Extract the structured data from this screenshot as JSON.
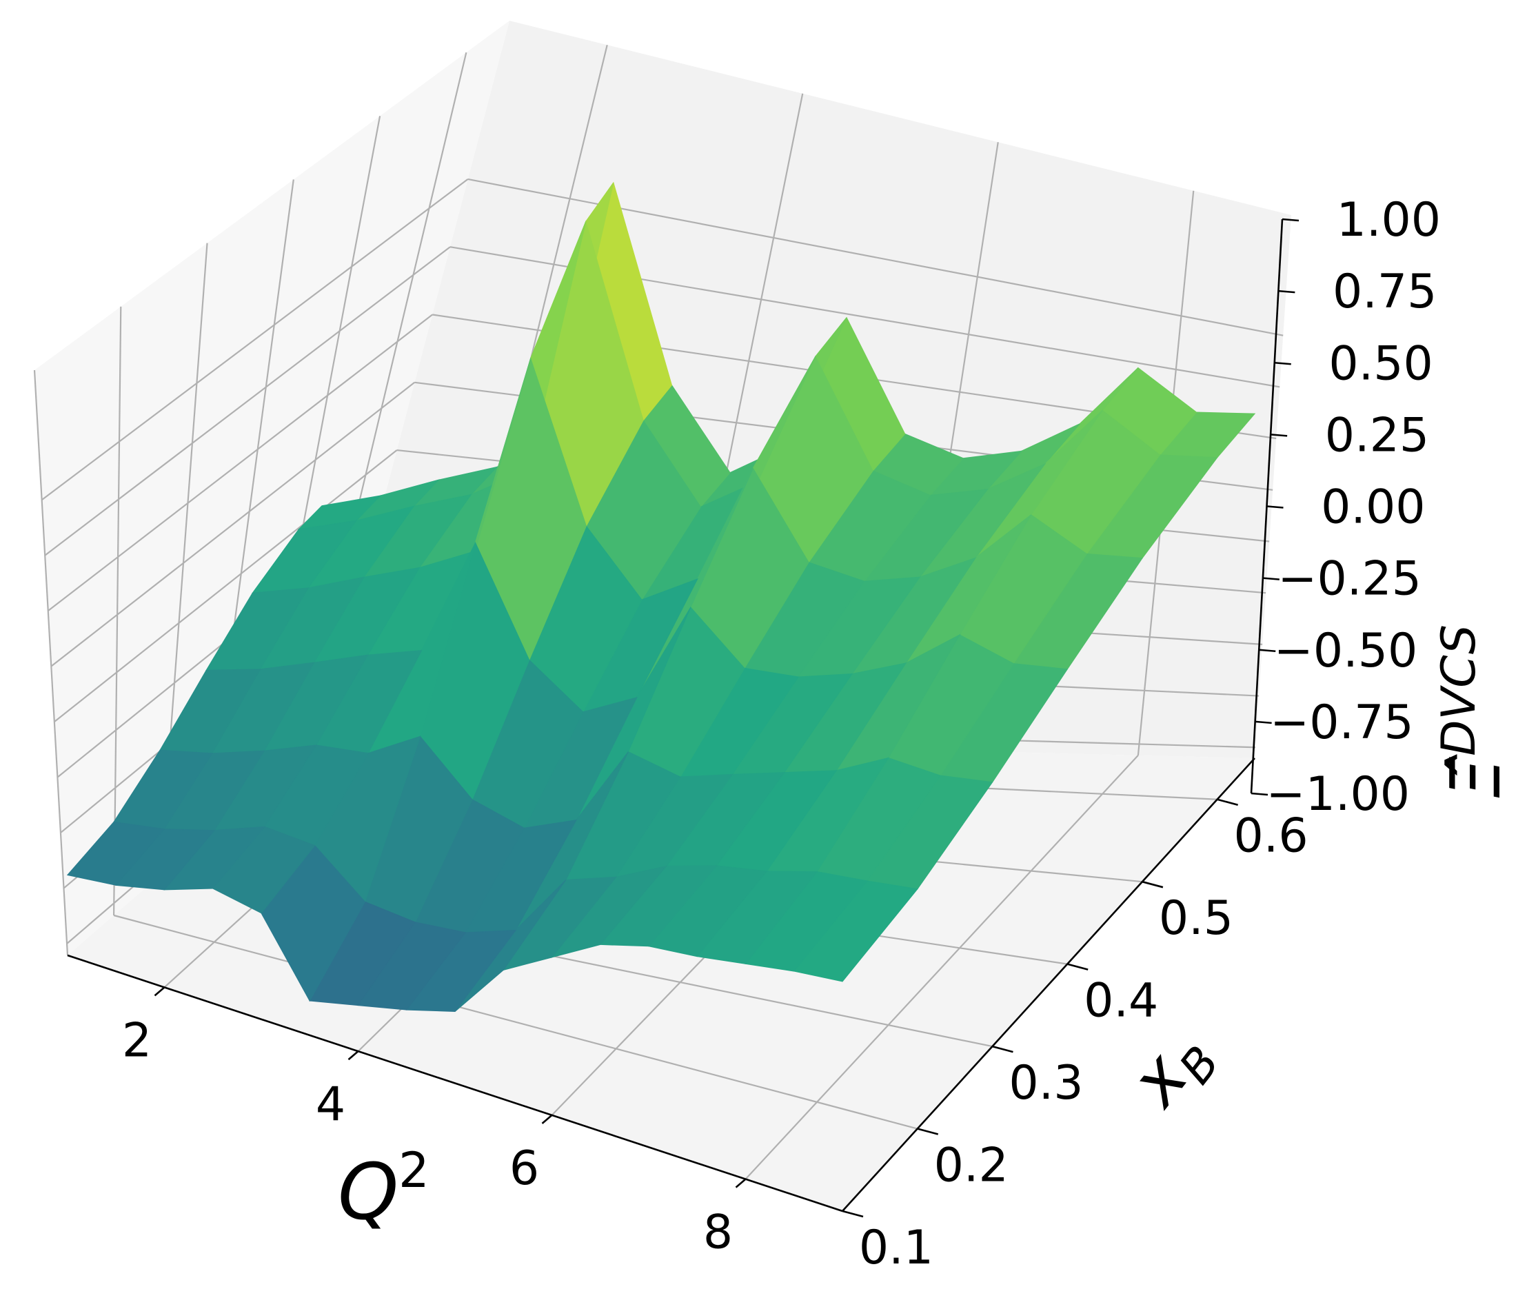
{
  "chart_data": {
    "type": "surface",
    "title": "",
    "colormap": "viridis",
    "xlabel": "Q",
    "xlabel_sup": "2",
    "ylabel": "x",
    "ylabel_sub": "B",
    "zlabel_symbol": "Ξ̂",
    "zlabel_sub": "DVCS",
    "x_ticks": [
      "2",
      "4",
      "6",
      "8"
    ],
    "y_ticks": [
      "0.1",
      "0.2",
      "0.3",
      "0.4",
      "0.5",
      "0.6"
    ],
    "z_ticks": [
      "−1.00",
      "−0.75",
      "−0.50",
      "−0.25",
      "0.00",
      "0.25",
      "0.50",
      "0.75",
      "1.00"
    ],
    "xlim": [
      1,
      9
    ],
    "ylim": [
      0.1,
      0.65
    ],
    "zlim": [
      -1.0,
      1.0
    ],
    "grid": true,
    "surface_profile": {
      "q2": [
        1.0,
        1.5,
        2.0,
        2.5,
        3.0,
        3.5,
        4.0,
        4.5,
        5.0,
        5.5,
        6.0,
        6.5,
        7.0,
        7.5,
        8.0,
        8.5,
        9.0
      ],
      "xb": [
        0.1,
        0.2,
        0.3,
        0.4,
        0.5,
        0.6,
        0.65
      ],
      "z_at_min_xb": [
        -0.72,
        -0.7,
        -0.66,
        -0.6,
        -0.63,
        -0.88,
        -0.84,
        -0.8,
        -0.75,
        -0.55,
        -0.45,
        -0.35,
        -0.3,
        -0.28,
        -0.25,
        -0.22,
        -0.2
      ],
      "z_at_max_xb": [
        -0.2,
        -0.16,
        -0.1,
        -0.05,
        0.05,
        0.95,
        0.25,
        -0.05,
        0.05,
        0.5,
        0.1,
        0.02,
        0.05,
        0.15,
        0.35,
        0.2,
        0.2
      ]
    }
  }
}
